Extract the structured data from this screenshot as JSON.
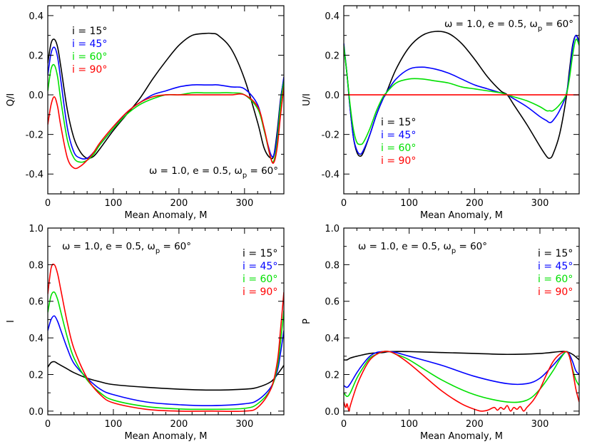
{
  "series_styles": [
    {
      "name": "i = 15°",
      "color": "#000000"
    },
    {
      "name": "i = 45°",
      "color": "#0000ff"
    },
    {
      "name": "i = 60°",
      "color": "#00e000"
    },
    {
      "name": "i = 90°",
      "color": "#ff0000"
    }
  ],
  "annotation": {
    "prefix": "ω = 1.0, e = 0.5, ω",
    "subscript": "p",
    "suffix": " = 60°"
  },
  "chart_data": [
    {
      "type": "line",
      "id": "qi",
      "xlabel": "Mean Anomaly, M",
      "ylabel": "Q/I",
      "xlim": [
        0,
        360
      ],
      "ylim": [
        -0.5,
        0.45
      ],
      "xticks": [
        0,
        100,
        200,
        300
      ],
      "xtick_labels": [
        "0",
        "100",
        "200",
        "300"
      ],
      "yticks": [
        -0.4,
        -0.2,
        0.0,
        0.2,
        0.4
      ],
      "ytick_labels": [
        "-0.4",
        "-0.2",
        "0.0",
        "0.2",
        "0.4"
      ],
      "legend_position": "top-left",
      "annotation_position": "bottom-right",
      "series": [
        {
          "name": "i = 15°",
          "x": [
            0,
            5,
            10,
            15,
            20,
            30,
            40,
            50,
            60,
            70,
            80,
            100,
            120,
            140,
            160,
            180,
            200,
            220,
            240,
            250,
            260,
            280,
            300,
            320,
            330,
            340,
            345,
            350,
            355,
            360
          ],
          "values": [
            0.16,
            0.26,
            0.28,
            0.24,
            0.14,
            -0.08,
            -0.22,
            -0.29,
            -0.32,
            -0.31,
            -0.27,
            -0.18,
            -0.1,
            -0.02,
            0.08,
            0.17,
            0.25,
            0.3,
            0.31,
            0.31,
            0.3,
            0.23,
            0.08,
            -0.14,
            -0.27,
            -0.32,
            -0.3,
            -0.18,
            -0.02,
            0.08
          ]
        },
        {
          "name": "i = 45°",
          "x": [
            0,
            5,
            10,
            15,
            20,
            30,
            40,
            50,
            60,
            70,
            80,
            100,
            120,
            140,
            160,
            180,
            200,
            220,
            240,
            250,
            260,
            280,
            300,
            320,
            330,
            340,
            345,
            350,
            355,
            360
          ],
          "values": [
            0.1,
            0.21,
            0.24,
            0.19,
            0.07,
            -0.17,
            -0.29,
            -0.32,
            -0.32,
            -0.29,
            -0.25,
            -0.17,
            -0.09,
            -0.04,
            0.0,
            0.02,
            0.04,
            0.05,
            0.05,
            0.05,
            0.05,
            0.04,
            0.03,
            -0.05,
            -0.18,
            -0.3,
            -0.3,
            -0.2,
            -0.03,
            0.09
          ]
        },
        {
          "name": "i = 60°",
          "x": [
            0,
            5,
            10,
            15,
            20,
            30,
            40,
            50,
            60,
            70,
            80,
            100,
            120,
            140,
            160,
            180,
            200,
            220,
            240,
            250,
            260,
            280,
            300,
            320,
            330,
            340,
            345,
            350,
            355,
            360
          ],
          "values": [
            0.02,
            0.13,
            0.15,
            0.09,
            -0.03,
            -0.23,
            -0.32,
            -0.34,
            -0.33,
            -0.3,
            -0.25,
            -0.17,
            -0.1,
            -0.05,
            -0.02,
            0.0,
            0.0,
            0.01,
            0.01,
            0.01,
            0.01,
            0.01,
            0.0,
            -0.07,
            -0.18,
            -0.32,
            -0.33,
            -0.23,
            -0.05,
            0.07
          ]
        },
        {
          "name": "i = 90°",
          "x": [
            0,
            5,
            10,
            15,
            20,
            30,
            40,
            50,
            60,
            70,
            80,
            100,
            120,
            140,
            160,
            180,
            200,
            220,
            240,
            250,
            260,
            280,
            300,
            320,
            330,
            340,
            345,
            350,
            355,
            360
          ],
          "values": [
            -0.15,
            -0.05,
            -0.01,
            -0.06,
            -0.16,
            -0.32,
            -0.37,
            -0.36,
            -0.33,
            -0.29,
            -0.24,
            -0.16,
            -0.09,
            -0.04,
            -0.01,
            0.0,
            0.0,
            0.0,
            0.0,
            0.0,
            0.0,
            0.0,
            0.0,
            -0.06,
            -0.17,
            -0.32,
            -0.34,
            -0.26,
            -0.1,
            0.04
          ]
        }
      ]
    },
    {
      "type": "line",
      "id": "ui",
      "xlabel": "Mean Anomaly, M",
      "ylabel": "U/I",
      "xlim": [
        0,
        360
      ],
      "ylim": [
        -0.5,
        0.45
      ],
      "xticks": [
        0,
        100,
        200,
        300
      ],
      "xtick_labels": [
        "0",
        "100",
        "200",
        "300"
      ],
      "yticks": [
        -0.4,
        -0.2,
        0.0,
        0.2,
        0.4
      ],
      "ytick_labels": [
        "-0.4",
        "-0.2",
        "0.0",
        "0.2",
        "0.4"
      ],
      "legend_position": "bottom-left",
      "annotation_position": "top-right",
      "series": [
        {
          "name": "i = 15°",
          "x": [
            0,
            5,
            10,
            15,
            20,
            25,
            30,
            40,
            50,
            60,
            65,
            80,
            100,
            120,
            140,
            160,
            180,
            200,
            220,
            240,
            250,
            260,
            280,
            300,
            310,
            315,
            320,
            330,
            340,
            345,
            350,
            355,
            360
          ],
          "values": [
            0.24,
            0.1,
            -0.08,
            -0.22,
            -0.29,
            -0.31,
            -0.29,
            -0.2,
            -0.1,
            -0.02,
            0.01,
            0.13,
            0.24,
            0.3,
            0.32,
            0.31,
            0.26,
            0.18,
            0.09,
            0.02,
            0.0,
            -0.05,
            -0.15,
            -0.26,
            -0.31,
            -0.32,
            -0.3,
            -0.2,
            -0.02,
            0.12,
            0.25,
            0.3,
            0.27
          ]
        },
        {
          "name": "i = 45°",
          "x": [
            0,
            5,
            10,
            15,
            20,
            25,
            30,
            40,
            50,
            60,
            65,
            80,
            100,
            120,
            140,
            160,
            180,
            200,
            220,
            240,
            250,
            260,
            280,
            300,
            310,
            315,
            320,
            330,
            340,
            345,
            350,
            355,
            360
          ],
          "values": [
            0.26,
            0.1,
            -0.08,
            -0.22,
            -0.28,
            -0.3,
            -0.28,
            -0.2,
            -0.1,
            -0.02,
            0.01,
            0.08,
            0.13,
            0.14,
            0.13,
            0.11,
            0.08,
            0.05,
            0.03,
            0.01,
            0.0,
            -0.02,
            -0.06,
            -0.11,
            -0.13,
            -0.14,
            -0.13,
            -0.08,
            0.0,
            0.1,
            0.24,
            0.3,
            0.26
          ]
        },
        {
          "name": "i = 60°",
          "x": [
            0,
            5,
            10,
            15,
            20,
            25,
            30,
            40,
            50,
            60,
            65,
            80,
            100,
            120,
            140,
            160,
            180,
            200,
            220,
            240,
            250,
            260,
            280,
            300,
            310,
            315,
            320,
            330,
            340,
            345,
            350,
            355,
            360
          ],
          "values": [
            0.25,
            0.1,
            -0.06,
            -0.18,
            -0.24,
            -0.25,
            -0.24,
            -0.17,
            -0.08,
            -0.01,
            0.01,
            0.06,
            0.08,
            0.08,
            0.07,
            0.06,
            0.04,
            0.03,
            0.02,
            0.01,
            0.0,
            -0.01,
            -0.03,
            -0.06,
            -0.08,
            -0.08,
            -0.08,
            -0.05,
            0.0,
            0.08,
            0.2,
            0.28,
            0.25
          ]
        },
        {
          "name": "i = 90°",
          "x": [
            0,
            360
          ],
          "values": [
            0.0,
            0.0
          ]
        }
      ]
    },
    {
      "type": "line",
      "id": "i",
      "xlabel": "Mean Anomaly, M",
      "ylabel": "I",
      "xlim": [
        0,
        360
      ],
      "ylim": [
        -0.02,
        1.0
      ],
      "xticks": [
        0,
        100,
        200,
        300
      ],
      "xtick_labels": [
        "0",
        "100",
        "200",
        "300"
      ],
      "yticks": [
        0.0,
        0.2,
        0.4,
        0.6,
        0.8,
        1.0
      ],
      "ytick_labels": [
        "0.0",
        "0.2",
        "0.4",
        "0.6",
        "0.8",
        "1.0"
      ],
      "legend_position": "top-right",
      "annotation_position": "top-left",
      "series": [
        {
          "name": "i = 15°",
          "x": [
            0,
            5,
            10,
            15,
            20,
            30,
            40,
            60,
            80,
            100,
            150,
            200,
            250,
            300,
            320,
            340,
            350,
            360
          ],
          "values": [
            0.24,
            0.265,
            0.27,
            0.26,
            0.25,
            0.23,
            0.21,
            0.18,
            0.16,
            0.145,
            0.13,
            0.12,
            0.115,
            0.12,
            0.13,
            0.16,
            0.2,
            0.25
          ]
        },
        {
          "name": "i = 45°",
          "x": [
            0,
            5,
            10,
            15,
            20,
            30,
            40,
            60,
            80,
            100,
            150,
            200,
            250,
            300,
            320,
            340,
            350,
            355,
            360
          ],
          "values": [
            0.44,
            0.5,
            0.52,
            0.49,
            0.44,
            0.34,
            0.26,
            0.18,
            0.12,
            0.09,
            0.05,
            0.035,
            0.03,
            0.04,
            0.06,
            0.13,
            0.22,
            0.32,
            0.44
          ]
        },
        {
          "name": "i = 60°",
          "x": [
            0,
            5,
            10,
            15,
            20,
            30,
            40,
            60,
            80,
            100,
            150,
            200,
            250,
            300,
            320,
            340,
            350,
            355,
            360
          ],
          "values": [
            0.54,
            0.63,
            0.65,
            0.61,
            0.54,
            0.4,
            0.29,
            0.17,
            0.1,
            0.06,
            0.025,
            0.012,
            0.01,
            0.015,
            0.04,
            0.12,
            0.24,
            0.38,
            0.55
          ]
        },
        {
          "name": "i = 90°",
          "x": [
            0,
            5,
            10,
            15,
            20,
            30,
            40,
            60,
            80,
            100,
            150,
            200,
            250,
            300,
            320,
            340,
            350,
            355,
            360
          ],
          "values": [
            0.64,
            0.78,
            0.8,
            0.75,
            0.66,
            0.48,
            0.34,
            0.18,
            0.09,
            0.045,
            0.01,
            0.0,
            0.0,
            0.0,
            0.02,
            0.12,
            0.27,
            0.45,
            0.65
          ]
        }
      ]
    },
    {
      "type": "line",
      "id": "p",
      "xlabel": "Mean Anomaly, M",
      "ylabel": "P",
      "xlim": [
        0,
        360
      ],
      "ylim": [
        -0.02,
        1.0
      ],
      "xticks": [
        0,
        100,
        200,
        300
      ],
      "xtick_labels": [
        "0",
        "100",
        "200",
        "300"
      ],
      "yticks": [
        0.0,
        0.2,
        0.4,
        0.6,
        0.8,
        1.0
      ],
      "ytick_labels": [
        "0.0",
        "0.2",
        "0.4",
        "0.6",
        "0.8",
        "1.0"
      ],
      "legend_position": "top-right",
      "annotation_position": "top-left",
      "series": [
        {
          "name": "i = 15°",
          "x": [
            0,
            5,
            10,
            20,
            40,
            60,
            70,
            100,
            150,
            200,
            250,
            300,
            330,
            340,
            350,
            360
          ],
          "values": [
            0.28,
            0.28,
            0.29,
            0.3,
            0.315,
            0.32,
            0.325,
            0.325,
            0.32,
            0.315,
            0.31,
            0.315,
            0.325,
            0.325,
            0.31,
            0.28
          ]
        },
        {
          "name": "i = 45°",
          "x": [
            0,
            5,
            10,
            20,
            30,
            40,
            50,
            60,
            70,
            80,
            100,
            150,
            200,
            250,
            280,
            300,
            320,
            330,
            340,
            345,
            350,
            355,
            360
          ],
          "values": [
            0.14,
            0.13,
            0.15,
            0.21,
            0.26,
            0.3,
            0.32,
            0.325,
            0.325,
            0.32,
            0.3,
            0.25,
            0.19,
            0.15,
            0.15,
            0.18,
            0.25,
            0.29,
            0.325,
            0.31,
            0.27,
            0.22,
            0.2
          ]
        },
        {
          "name": "i = 60°",
          "x": [
            0,
            5,
            10,
            20,
            30,
            40,
            50,
            60,
            70,
            80,
            100,
            150,
            200,
            250,
            280,
            300,
            320,
            330,
            340,
            345,
            350,
            355,
            360
          ],
          "values": [
            0.1,
            0.08,
            0.1,
            0.18,
            0.24,
            0.29,
            0.31,
            0.325,
            0.325,
            0.31,
            0.28,
            0.17,
            0.09,
            0.05,
            0.06,
            0.12,
            0.22,
            0.28,
            0.325,
            0.3,
            0.23,
            0.17,
            0.14
          ]
        },
        {
          "name": "i = 90°",
          "x": [
            0,
            3,
            5,
            8,
            10,
            20,
            30,
            40,
            50,
            60,
            70,
            80,
            100,
            120,
            150,
            180,
            200,
            210,
            220,
            230,
            235,
            240,
            245,
            250,
            255,
            260,
            265,
            270,
            275,
            280,
            290,
            300,
            310,
            320,
            330,
            340,
            345,
            350,
            355,
            360
          ],
          "values": [
            0.05,
            0.02,
            0.04,
            0.0,
            0.03,
            0.14,
            0.22,
            0.28,
            0.31,
            0.325,
            0.325,
            0.31,
            0.26,
            0.2,
            0.11,
            0.04,
            0.01,
            0.0,
            0.005,
            0.02,
            0.005,
            0.02,
            0.01,
            0.03,
            0.0,
            0.02,
            0.01,
            0.025,
            0.0,
            0.02,
            0.06,
            0.12,
            0.2,
            0.27,
            0.31,
            0.325,
            0.3,
            0.22,
            0.12,
            0.05
          ]
        }
      ]
    }
  ]
}
